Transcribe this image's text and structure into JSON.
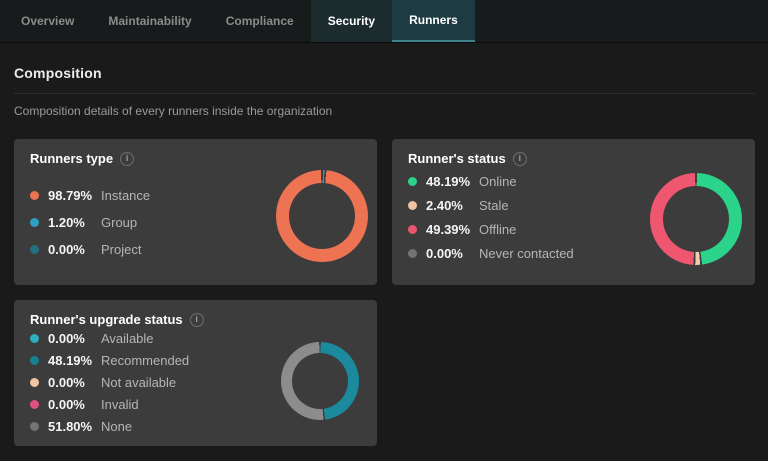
{
  "tabs": {
    "items": [
      {
        "label": "Overview",
        "state": "inactive"
      },
      {
        "label": "Maintainability",
        "state": "inactive"
      },
      {
        "label": "Compliance",
        "state": "inactive"
      },
      {
        "label": "Security",
        "state": "hovered"
      },
      {
        "label": "Runners",
        "state": "active"
      }
    ]
  },
  "section": {
    "title": "Composition",
    "subtitle": "Composition details of every runners inside the organization"
  },
  "cards": [
    {
      "title": "Runners type",
      "legend": [
        {
          "pct": "98.79%",
          "label": "Instance",
          "color": "#ee7352"
        },
        {
          "pct": "1.20%",
          "label": "Group",
          "color": "#2f9fc0"
        },
        {
          "pct": "0.00%",
          "label": "Project",
          "color": "#23717e"
        }
      ],
      "donut": {
        "segments": [
          {
            "value": 1.2,
            "color": "#2f9fc0"
          },
          {
            "value": 98.79,
            "color": "#ee7352"
          }
        ]
      }
    },
    {
      "title": "Runner's status",
      "legend": [
        {
          "pct": "48.19%",
          "label": "Online",
          "color": "#2bd48a"
        },
        {
          "pct": "2.40%",
          "label": "Stale",
          "color": "#eec2a2"
        },
        {
          "pct": "49.39%",
          "label": "Offline",
          "color": "#e8566d"
        },
        {
          "pct": "0.00%",
          "label": "Never contacted",
          "color": "#737373"
        }
      ],
      "donut": {
        "segments": [
          {
            "value": 48.19,
            "color": "#2bd48a"
          },
          {
            "value": 2.4,
            "color": "#f2cdb0"
          },
          {
            "value": 49.39,
            "color": "#ef5670"
          }
        ]
      }
    },
    {
      "title": "Runner's upgrade status",
      "legend": [
        {
          "pct": "0.00%",
          "label": "Available",
          "color": "#2fb0be"
        },
        {
          "pct": "48.19%",
          "label": "Recommended",
          "color": "#17818f"
        },
        {
          "pct": "0.00%",
          "label": "Not available",
          "color": "#ecc5a7"
        },
        {
          "pct": "0.00%",
          "label": "Invalid",
          "color": "#e0527d"
        },
        {
          "pct": "51.80%",
          "label": "None",
          "color": "#737373"
        }
      ],
      "donut": {
        "segments": [
          {
            "value": 48.19,
            "color": "#1b8a9c"
          },
          {
            "value": 51.8,
            "color": "#8c8c8c"
          }
        ]
      }
    }
  ],
  "colors": {
    "card_bg": "#3c3c3c",
    "active_tab_bg": "#1d3b42",
    "accent": "#3f828c"
  }
}
